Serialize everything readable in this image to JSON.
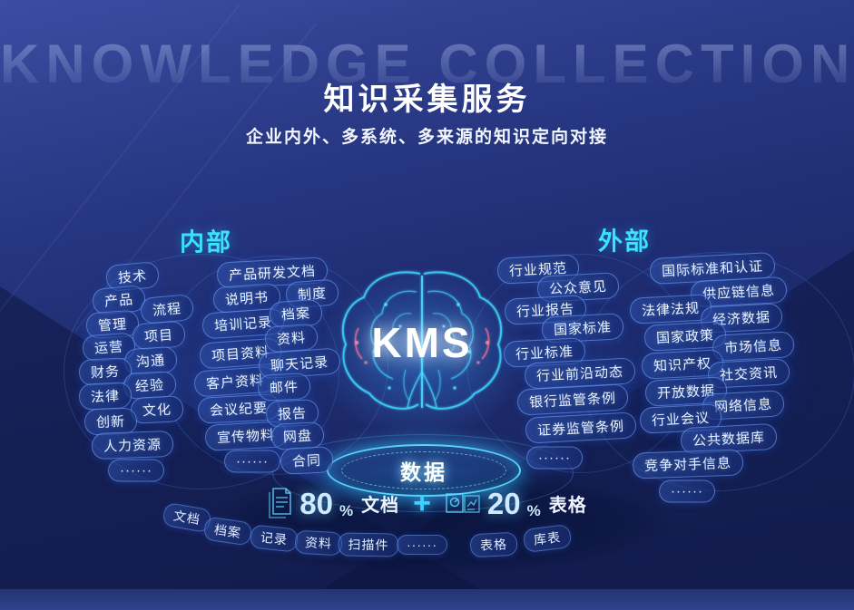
{
  "page": {
    "watermark": "KNOWLEDGE COLLECTION",
    "title": "知识采集服务",
    "subtitle": "企业内外、多系统、多来源的知识定向对接"
  },
  "center": {
    "kms": "KMS",
    "data_ring": "数据"
  },
  "internal": {
    "heading": "内部",
    "tags_left": [
      "技术",
      "产品",
      "流程",
      "管理",
      "项目",
      "运营",
      "沟通",
      "财务",
      "经验",
      "法律",
      "文化",
      "创新",
      "人力资源",
      "······"
    ],
    "tags_mid": [
      "产品研发文档",
      "说明书",
      "培训记录",
      "项目资料",
      "客户资料",
      "会议纪要",
      "宣传物料",
      "······"
    ],
    "tags_inner": [
      "制度",
      "档案",
      "资料",
      "聊天记录",
      "邮件",
      "报告",
      "网盘",
      "合同"
    ]
  },
  "external": {
    "heading": "外部",
    "tags_inner": [
      "行业规范",
      "公众意见",
      "行业报告",
      "国家标准",
      "行业标准",
      "行业前沿动态",
      "银行监管条例",
      "证券监管条例",
      "······"
    ],
    "tags_right": [
      "国际标准和认证",
      "供应链信息",
      "法律法规",
      "经济数据",
      "国家政策",
      "市场信息",
      "知识产权",
      "社交资讯",
      "开放数据",
      "网络信息",
      "行业会议",
      "公共数据库",
      "竞争对手信息",
      "······"
    ]
  },
  "stats": {
    "doc_value": "80",
    "doc_unit": "%",
    "doc_label": "文档",
    "plus": "+",
    "table_value": "20",
    "table_unit": "%",
    "table_label": "表格"
  },
  "bottom_tags": [
    "文档",
    "档案",
    "记录",
    "资料",
    "扫描件",
    "······",
    "表格",
    "库表"
  ],
  "colors": {
    "accent_cyan": "#3be1ff",
    "ring_glow": "#46d7ff",
    "pill_border": "#84b6ff"
  }
}
